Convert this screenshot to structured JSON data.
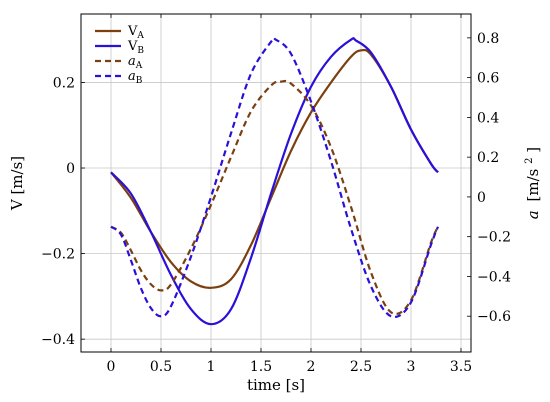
{
  "chart_data": {
    "type": "line",
    "title": "",
    "xlabel": "time [s]",
    "ylabel_left": "V [m/s]",
    "ylabel_right_italic": "a",
    "ylabel_right_unit": "[m/s",
    "ylabel_right_sup": "2",
    "ylabel_right_close": "]",
    "xlim": [
      -0.3,
      3.6
    ],
    "ylim_left": [
      -0.43,
      0.36
    ],
    "ylim_right": [
      -0.78,
      0.92
    ],
    "x_ticks": [
      0,
      0.5,
      1,
      1.5,
      2,
      2.5,
      3,
      3.5
    ],
    "x_tick_labels": [
      "0",
      "0.5",
      "1",
      "1.5",
      "2",
      "2.5",
      "3",
      "3.5"
    ],
    "y_left_ticks": [
      -0.4,
      -0.2,
      0,
      0.2
    ],
    "y_left_tick_labels": [
      "−0.4",
      "−0.2",
      "0",
      "0.2"
    ],
    "y_right_ticks": [
      -0.6,
      -0.4,
      -0.2,
      0,
      0.2,
      0.4,
      0.6,
      0.8
    ],
    "y_right_tick_labels": [
      "−0.6",
      "−0.4",
      "−0.2",
      "0",
      "0.2",
      "0.4",
      "0.6",
      "0.8"
    ],
    "grid": true,
    "legend_position": "top-left",
    "series": [
      {
        "name": "V",
        "sub": "A",
        "axis": "left",
        "style": "solid",
        "color": "#7b3f10",
        "x": [
          0,
          0.2,
          0.4,
          0.6,
          0.8,
          1.0,
          1.2,
          1.4,
          1.6,
          1.8,
          2.0,
          2.2,
          2.4,
          2.5,
          2.6,
          2.8,
          3.0,
          3.2,
          3.27
        ],
        "y": [
          -0.01,
          -0.07,
          -0.15,
          -0.22,
          -0.265,
          -0.28,
          -0.26,
          -0.18,
          -0.07,
          0.04,
          0.13,
          0.2,
          0.26,
          0.275,
          0.265,
          0.19,
          0.09,
          0.01,
          -0.01
        ]
      },
      {
        "name": "V",
        "sub": "B",
        "axis": "left",
        "style": "solid",
        "color": "#2a10d8",
        "x": [
          0,
          0.2,
          0.4,
          0.6,
          0.8,
          1.0,
          1.2,
          1.4,
          1.6,
          1.8,
          2.0,
          2.2,
          2.4,
          2.45,
          2.6,
          2.8,
          3.0,
          3.2,
          3.27
        ],
        "y": [
          -0.01,
          -0.06,
          -0.15,
          -0.25,
          -0.33,
          -0.365,
          -0.33,
          -0.21,
          -0.06,
          0.08,
          0.19,
          0.26,
          0.3,
          0.298,
          0.27,
          0.19,
          0.09,
          0.01,
          -0.01
        ]
      },
      {
        "name": "a",
        "sub": "A",
        "axis": "right",
        "style": "dashed",
        "color": "#7b3f10",
        "x": [
          0,
          0.1,
          0.2,
          0.3,
          0.4,
          0.5,
          0.6,
          0.8,
          1.0,
          1.2,
          1.4,
          1.6,
          1.7,
          1.8,
          2.0,
          2.2,
          2.4,
          2.6,
          2.8,
          3.0,
          3.2,
          3.27
        ],
        "y": [
          -0.15,
          -0.18,
          -0.27,
          -0.37,
          -0.44,
          -0.47,
          -0.44,
          -0.26,
          -0.04,
          0.2,
          0.43,
          0.56,
          0.58,
          0.57,
          0.46,
          0.25,
          -0.05,
          -0.38,
          -0.58,
          -0.52,
          -0.23,
          -0.15
        ]
      },
      {
        "name": "a",
        "sub": "B",
        "axis": "right",
        "style": "dashed",
        "color": "#2a10d8",
        "x": [
          0,
          0.1,
          0.2,
          0.3,
          0.4,
          0.5,
          0.6,
          0.8,
          1.0,
          1.2,
          1.4,
          1.6,
          1.65,
          1.8,
          2.0,
          2.2,
          2.4,
          2.6,
          2.8,
          3.0,
          3.2,
          3.27
        ],
        "y": [
          -0.15,
          -0.19,
          -0.32,
          -0.46,
          -0.56,
          -0.6,
          -0.55,
          -0.3,
          0.0,
          0.32,
          0.62,
          0.78,
          0.79,
          0.72,
          0.48,
          0.18,
          -0.16,
          -0.45,
          -0.6,
          -0.53,
          -0.24,
          -0.15
        ]
      }
    ]
  }
}
